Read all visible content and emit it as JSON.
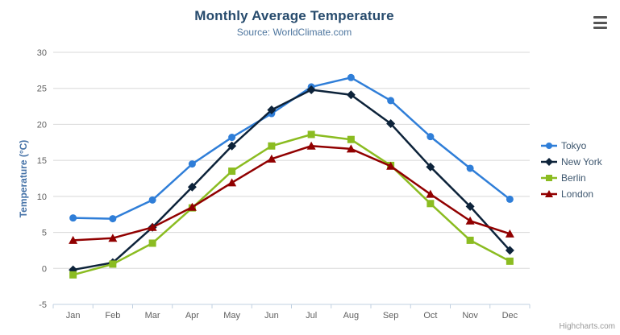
{
  "header": {
    "title": "Monthly Average Temperature",
    "subtitle": "Source: WorldClimate.com"
  },
  "credit": {
    "label": "Highcharts.com"
  },
  "menu": {
    "icon": "hamburger-menu-icon"
  },
  "chart_data": {
    "type": "line",
    "title": "Monthly Average Temperature",
    "subtitle": "Source: WorldClimate.com",
    "categories": [
      "Jan",
      "Feb",
      "Mar",
      "Apr",
      "May",
      "Jun",
      "Jul",
      "Aug",
      "Sep",
      "Oct",
      "Nov",
      "Dec"
    ],
    "xlabel": "",
    "ylabel": "Temperature (°C)",
    "ylim": [
      -5,
      30
    ],
    "ytick_interval": 5,
    "grid": true,
    "legend_position": "right",
    "series": [
      {
        "name": "Tokyo",
        "color": "#2f7ed8",
        "marker": "circle",
        "values": [
          7.0,
          6.9,
          9.5,
          14.5,
          18.2,
          21.5,
          25.2,
          26.5,
          23.3,
          18.3,
          13.9,
          9.6
        ]
      },
      {
        "name": "New York",
        "color": "#0d233a",
        "marker": "diamond",
        "values": [
          -0.2,
          0.8,
          5.7,
          11.3,
          17.0,
          22.0,
          24.8,
          24.1,
          20.1,
          14.1,
          8.6,
          2.5
        ]
      },
      {
        "name": "Berlin",
        "color": "#8bbc21",
        "marker": "square",
        "values": [
          -0.9,
          0.6,
          3.5,
          8.4,
          13.5,
          17.0,
          18.6,
          17.9,
          14.3,
          9.0,
          3.9,
          1.0
        ]
      },
      {
        "name": "London",
        "color": "#910000",
        "marker": "triangle",
        "values": [
          3.9,
          4.2,
          5.7,
          8.5,
          11.9,
          15.2,
          17.0,
          16.6,
          14.2,
          10.3,
          6.6,
          4.8
        ]
      }
    ]
  },
  "colors": {
    "title": "#274b6d",
    "subtitle": "#4d759e",
    "axis_label": "#606060",
    "axis_title": "#4572a7",
    "axis_line": "#c0d0e0",
    "gridline": "#d8d8d8",
    "legend_text": "#3e576f",
    "credit": "#999999",
    "menu_icon": "#555555"
  }
}
